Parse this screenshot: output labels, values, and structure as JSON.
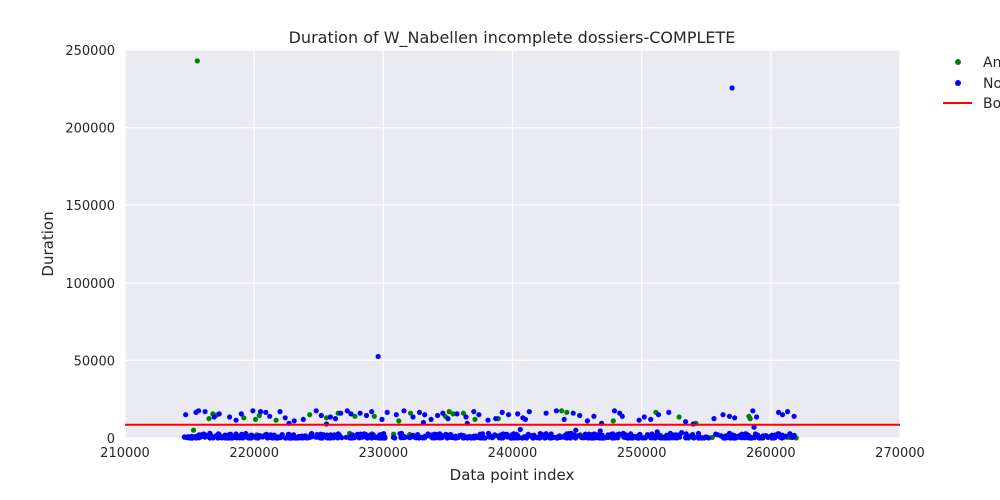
{
  "chart_data": {
    "type": "scatter",
    "title": "Duration of W_Nabellen incomplete dossiers-COMPLETE",
    "xlabel": "Data point index",
    "ylabel": "Duration",
    "xlim": [
      210000,
      270000
    ],
    "ylim": [
      0,
      250000
    ],
    "x_ticks": [
      "210000",
      "220000",
      "230000",
      "240000",
      "250000",
      "260000",
      "270000"
    ],
    "y_ticks": [
      "0",
      "50000",
      "100000",
      "150000",
      "200000",
      "250000"
    ],
    "grid": true,
    "legend_position": "outside-right",
    "legend": [
      {
        "label": "An",
        "marker": "dot",
        "color": "#008000"
      },
      {
        "label": "No",
        "marker": "dot",
        "color": "#0000ff"
      },
      {
        "label": "Bo",
        "marker": "line",
        "color": "#ff0000"
      }
    ],
    "boundary_line": {
      "y": 8500,
      "color": "#ff0000"
    },
    "series": [
      {
        "name": "An",
        "color": "#008000",
        "points": [
          [
            215600,
            243000
          ],
          [
            216800,
            15500
          ],
          [
            217100,
            14800
          ],
          [
            216500,
            12500
          ],
          [
            219200,
            13000
          ],
          [
            220100,
            12000
          ],
          [
            220400,
            14500
          ],
          [
            224300,
            15000
          ],
          [
            226500,
            16000
          ],
          [
            227800,
            14000
          ],
          [
            229300,
            14000
          ],
          [
            231200,
            11000
          ],
          [
            232100,
            16000
          ],
          [
            234800,
            14000
          ],
          [
            235100,
            17000
          ],
          [
            235400,
            15500
          ],
          [
            236200,
            16000
          ],
          [
            237100,
            12000
          ],
          [
            243800,
            17500
          ],
          [
            244200,
            16500
          ],
          [
            251100,
            16500
          ],
          [
            252900,
            13500
          ],
          [
            258300,
            14000
          ],
          [
            258400,
            12500
          ],
          [
            215300,
            5000
          ],
          [
            225600,
            13000
          ],
          [
            238900,
            12500
          ],
          [
            247800,
            11000
          ],
          [
            254200,
            9500
          ],
          [
            221700,
            11500
          ]
        ]
      },
      {
        "name": "No",
        "color": "#0000ff",
        "points": [
          [
            257000,
            225500
          ],
          [
            229600,
            52500
          ],
          [
            214700,
            15000
          ],
          [
            215500,
            16500
          ],
          [
            215700,
            17500
          ],
          [
            216200,
            17000
          ],
          [
            216900,
            13500
          ],
          [
            217300,
            15500
          ],
          [
            218100,
            13500
          ],
          [
            218600,
            11500
          ],
          [
            219000,
            15500
          ],
          [
            219900,
            17500
          ],
          [
            220500,
            17000
          ],
          [
            220900,
            16500
          ],
          [
            221200,
            14000
          ],
          [
            222000,
            17000
          ],
          [
            222400,
            13000
          ],
          [
            223100,
            11000
          ],
          [
            223800,
            12000
          ],
          [
            224800,
            17500
          ],
          [
            225200,
            14500
          ],
          [
            225900,
            13500
          ],
          [
            226300,
            12500
          ],
          [
            226700,
            16000
          ],
          [
            227200,
            17500
          ],
          [
            227500,
            15500
          ],
          [
            228200,
            16000
          ],
          [
            228700,
            14500
          ],
          [
            229100,
            17000
          ],
          [
            229900,
            12000
          ],
          [
            230300,
            16500
          ],
          [
            231000,
            15000
          ],
          [
            231600,
            17500
          ],
          [
            232300,
            13500
          ],
          [
            232800,
            16500
          ],
          [
            233200,
            15000
          ],
          [
            233700,
            12000
          ],
          [
            234200,
            14500
          ],
          [
            234600,
            16000
          ],
          [
            235000,
            12500
          ],
          [
            235700,
            15500
          ],
          [
            236400,
            13500
          ],
          [
            237000,
            17000
          ],
          [
            237400,
            15000
          ],
          [
            238100,
            11500
          ],
          [
            238700,
            12500
          ],
          [
            239200,
            16500
          ],
          [
            239700,
            15000
          ],
          [
            240400,
            15500
          ],
          [
            240800,
            13000
          ],
          [
            241300,
            17000
          ],
          [
            242600,
            16000
          ],
          [
            243400,
            17500
          ],
          [
            244000,
            12000
          ],
          [
            244700,
            16000
          ],
          [
            245200,
            14500
          ],
          [
            245800,
            11000
          ],
          [
            246300,
            14000
          ],
          [
            246900,
            9500
          ],
          [
            247900,
            17500
          ],
          [
            248300,
            16000
          ],
          [
            249800,
            11500
          ],
          [
            250200,
            13500
          ],
          [
            250700,
            12000
          ],
          [
            251300,
            15000
          ],
          [
            252100,
            16500
          ],
          [
            253400,
            10500
          ],
          [
            254000,
            9000
          ],
          [
            255600,
            12500
          ],
          [
            256300,
            15000
          ],
          [
            256800,
            14000
          ],
          [
            257200,
            13000
          ],
          [
            258600,
            17500
          ],
          [
            258900,
            13500
          ],
          [
            260600,
            16500
          ],
          [
            260900,
            15000
          ],
          [
            261300,
            17000
          ],
          [
            261800,
            14000
          ],
          [
            240600,
            5500
          ],
          [
            244900,
            5000
          ],
          [
            246800,
            4500
          ],
          [
            251200,
            4000
          ],
          [
            253100,
            3500
          ],
          [
            258700,
            7000
          ],
          [
            241000,
            12000
          ],
          [
            248500,
            14000
          ],
          [
            233100,
            10000
          ],
          [
            236500,
            9500
          ],
          [
            225600,
            9000
          ],
          [
            222700,
            9500
          ]
        ],
        "dense_bands": [
          {
            "x_range": [
              214500,
              262000
            ],
            "y_range": [
              0,
              3000
            ]
          }
        ]
      }
    ]
  }
}
